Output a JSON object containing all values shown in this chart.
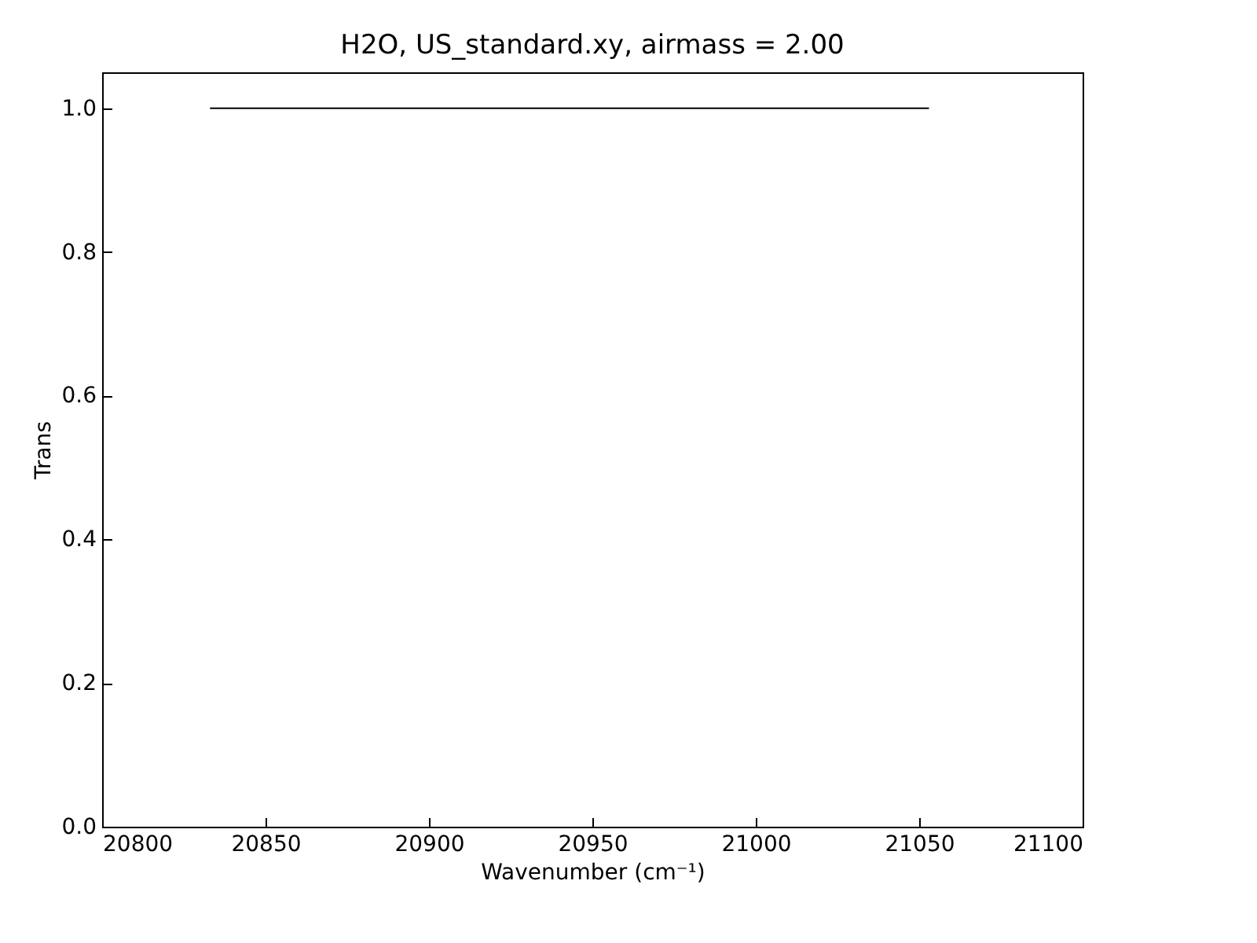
{
  "chart_data": {
    "type": "line",
    "title": "H2O, US_standard.xy, airmass = 2.00",
    "xlabel": "Wavenumber (cm⁻¹)",
    "ylabel": "Trans",
    "x": [
      20833,
      21053
    ],
    "series": [
      {
        "color": "#000000",
        "values": [
          1.0,
          1.0
        ]
      }
    ],
    "xlim": [
      20800,
      21100
    ],
    "xticks": [
      20800,
      20850,
      20900,
      20950,
      21000,
      21050,
      21100
    ],
    "ylim": [
      0,
      1.05
    ],
    "yticks": [
      {
        "value": 0,
        "label": "0.0"
      },
      0.2,
      0.4,
      0.6,
      0.8,
      {
        "value": 1,
        "label": "1.0"
      }
    ],
    "grid": false,
    "marker": "none",
    "line_style": "solid"
  }
}
